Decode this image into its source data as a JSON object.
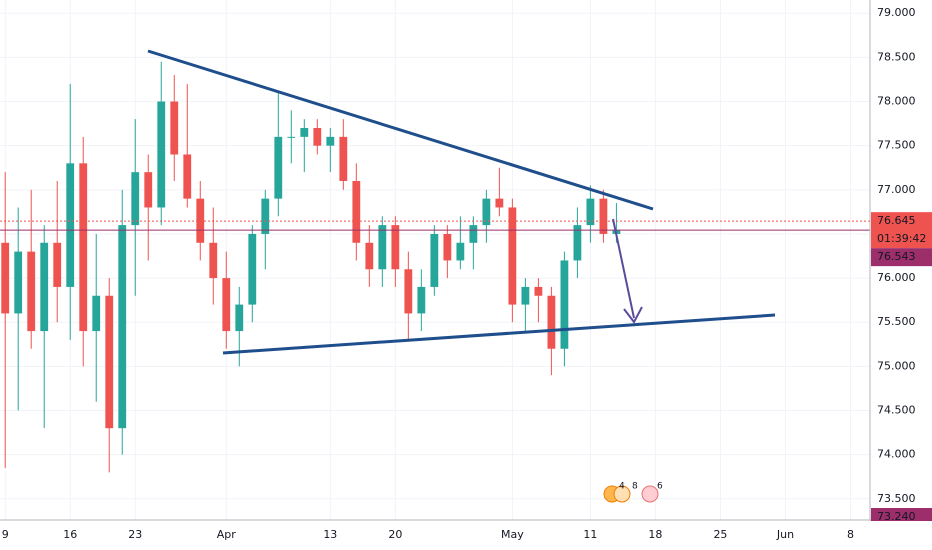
{
  "chart_data": {
    "type": "candlestick",
    "x": [
      0,
      1,
      2,
      3,
      4,
      5,
      6,
      7,
      8,
      9,
      10,
      11,
      12,
      13,
      14,
      15,
      16,
      17,
      18,
      19,
      20,
      21,
      22,
      23,
      24,
      25,
      26,
      27,
      28,
      29,
      30,
      31,
      32,
      33,
      34,
      35,
      36,
      37,
      38,
      39,
      40,
      41,
      42,
      43,
      44,
      45,
      46,
      47
    ],
    "open": [
      76.4,
      75.6,
      76.3,
      75.4,
      76.4,
      75.9,
      77.3,
      75.4,
      75.8,
      74.3,
      76.6,
      77.2,
      76.8,
      78.0,
      77.4,
      76.9,
      76.4,
      76.0,
      75.4,
      75.7,
      76.5,
      76.9,
      77.6,
      77.6,
      77.7,
      77.5,
      77.6,
      77.1,
      76.4,
      76.1,
      76.6,
      76.1,
      75.6,
      75.9,
      76.5,
      76.2,
      76.4,
      76.6,
      76.9,
      76.8,
      75.7,
      75.9,
      75.8,
      75.2,
      76.2,
      76.6,
      76.9,
      76.5
    ],
    "high": [
      77.2,
      76.8,
      77.0,
      76.6,
      77.1,
      78.2,
      77.6,
      76.5,
      76.0,
      77.0,
      77.8,
      77.4,
      78.45,
      78.3,
      78.2,
      77.1,
      76.8,
      76.3,
      75.9,
      76.6,
      77.0,
      78.1,
      77.9,
      77.8,
      77.8,
      77.7,
      77.8,
      77.3,
      76.6,
      76.7,
      76.7,
      76.3,
      76.1,
      76.6,
      76.6,
      76.7,
      76.7,
      77.0,
      77.25,
      76.9,
      76.0,
      76.0,
      75.9,
      76.3,
      76.8,
      77.05,
      77.0,
      76.85
    ],
    "low": [
      73.85,
      74.5,
      75.2,
      74.3,
      75.5,
      75.3,
      75.0,
      74.6,
      73.8,
      74.0,
      75.8,
      76.2,
      76.6,
      77.1,
      76.8,
      76.2,
      75.7,
      75.2,
      75.0,
      75.5,
      76.1,
      76.7,
      77.3,
      77.2,
      77.4,
      77.2,
      77.0,
      76.2,
      75.9,
      75.9,
      75.9,
      75.3,
      75.4,
      75.8,
      76.0,
      76.1,
      76.1,
      76.4,
      76.7,
      75.5,
      75.4,
      75.5,
      74.9,
      75.0,
      76.0,
      76.4,
      76.4,
      76.4
    ],
    "close": [
      75.6,
      76.3,
      75.4,
      76.4,
      75.9,
      77.3,
      75.4,
      75.8,
      74.3,
      76.6,
      77.2,
      76.8,
      78.0,
      77.4,
      76.9,
      76.4,
      76.0,
      75.4,
      75.7,
      76.5,
      76.9,
      77.6,
      77.6,
      77.7,
      77.5,
      77.6,
      77.1,
      76.4,
      76.1,
      76.6,
      76.1,
      75.6,
      75.9,
      76.5,
      76.2,
      76.4,
      76.6,
      76.9,
      76.8,
      75.7,
      75.9,
      75.8,
      75.2,
      76.2,
      76.6,
      76.9,
      76.5,
      76.54
    ],
    "up_color": "#26a69a",
    "down_color": "#ef5350",
    "xlim": [
      -0.4,
      66.5
    ],
    "ylim": [
      73.26,
      79.15
    ],
    "xticks": [
      {
        "value": 0,
        "label": "9"
      },
      {
        "value": 5,
        "label": "16"
      },
      {
        "value": 10,
        "label": "23"
      },
      {
        "value": 17,
        "label": "Apr"
      },
      {
        "value": 25,
        "label": "13"
      },
      {
        "value": 30,
        "label": "20"
      },
      {
        "value": 39,
        "label": "May"
      },
      {
        "value": 45,
        "label": "11"
      },
      {
        "value": 50,
        "label": "18"
      },
      {
        "value": 55,
        "label": "25"
      },
      {
        "value": 60,
        "label": "Jun"
      },
      {
        "value": 65,
        "label": "8"
      }
    ],
    "yticks": [
      {
        "value": 73.5,
        "label": "73.500"
      },
      {
        "value": 74,
        "label": "74.000"
      },
      {
        "value": 74.5,
        "label": "74.500"
      },
      {
        "value": 75,
        "label": "75.000"
      },
      {
        "value": 75.5,
        "label": "75.500"
      },
      {
        "value": 76,
        "label": "76.000"
      },
      {
        "value": 76.5,
        "label": "76.500"
      },
      {
        "value": 77,
        "label": "77.000"
      },
      {
        "value": 77.5,
        "label": "77.500"
      },
      {
        "value": 78,
        "label": "78.000"
      },
      {
        "value": 78.5,
        "label": "78.500"
      },
      {
        "value": 79,
        "label": "79.000"
      }
    ],
    "grid": true,
    "price_lines": [
      {
        "value": 76.645,
        "label": "76.645",
        "color": "#ef5350",
        "style": "dotted"
      },
      {
        "value": 76.543,
        "label": "76.543",
        "color": "#9c2e6b",
        "style": "solid"
      }
    ],
    "countdown": "01:39:42",
    "low_marker": {
      "value": 73.24,
      "label": "73.240",
      "color": "#9c2e6b"
    },
    "event_counts": [
      "4",
      "8",
      "6"
    ]
  }
}
